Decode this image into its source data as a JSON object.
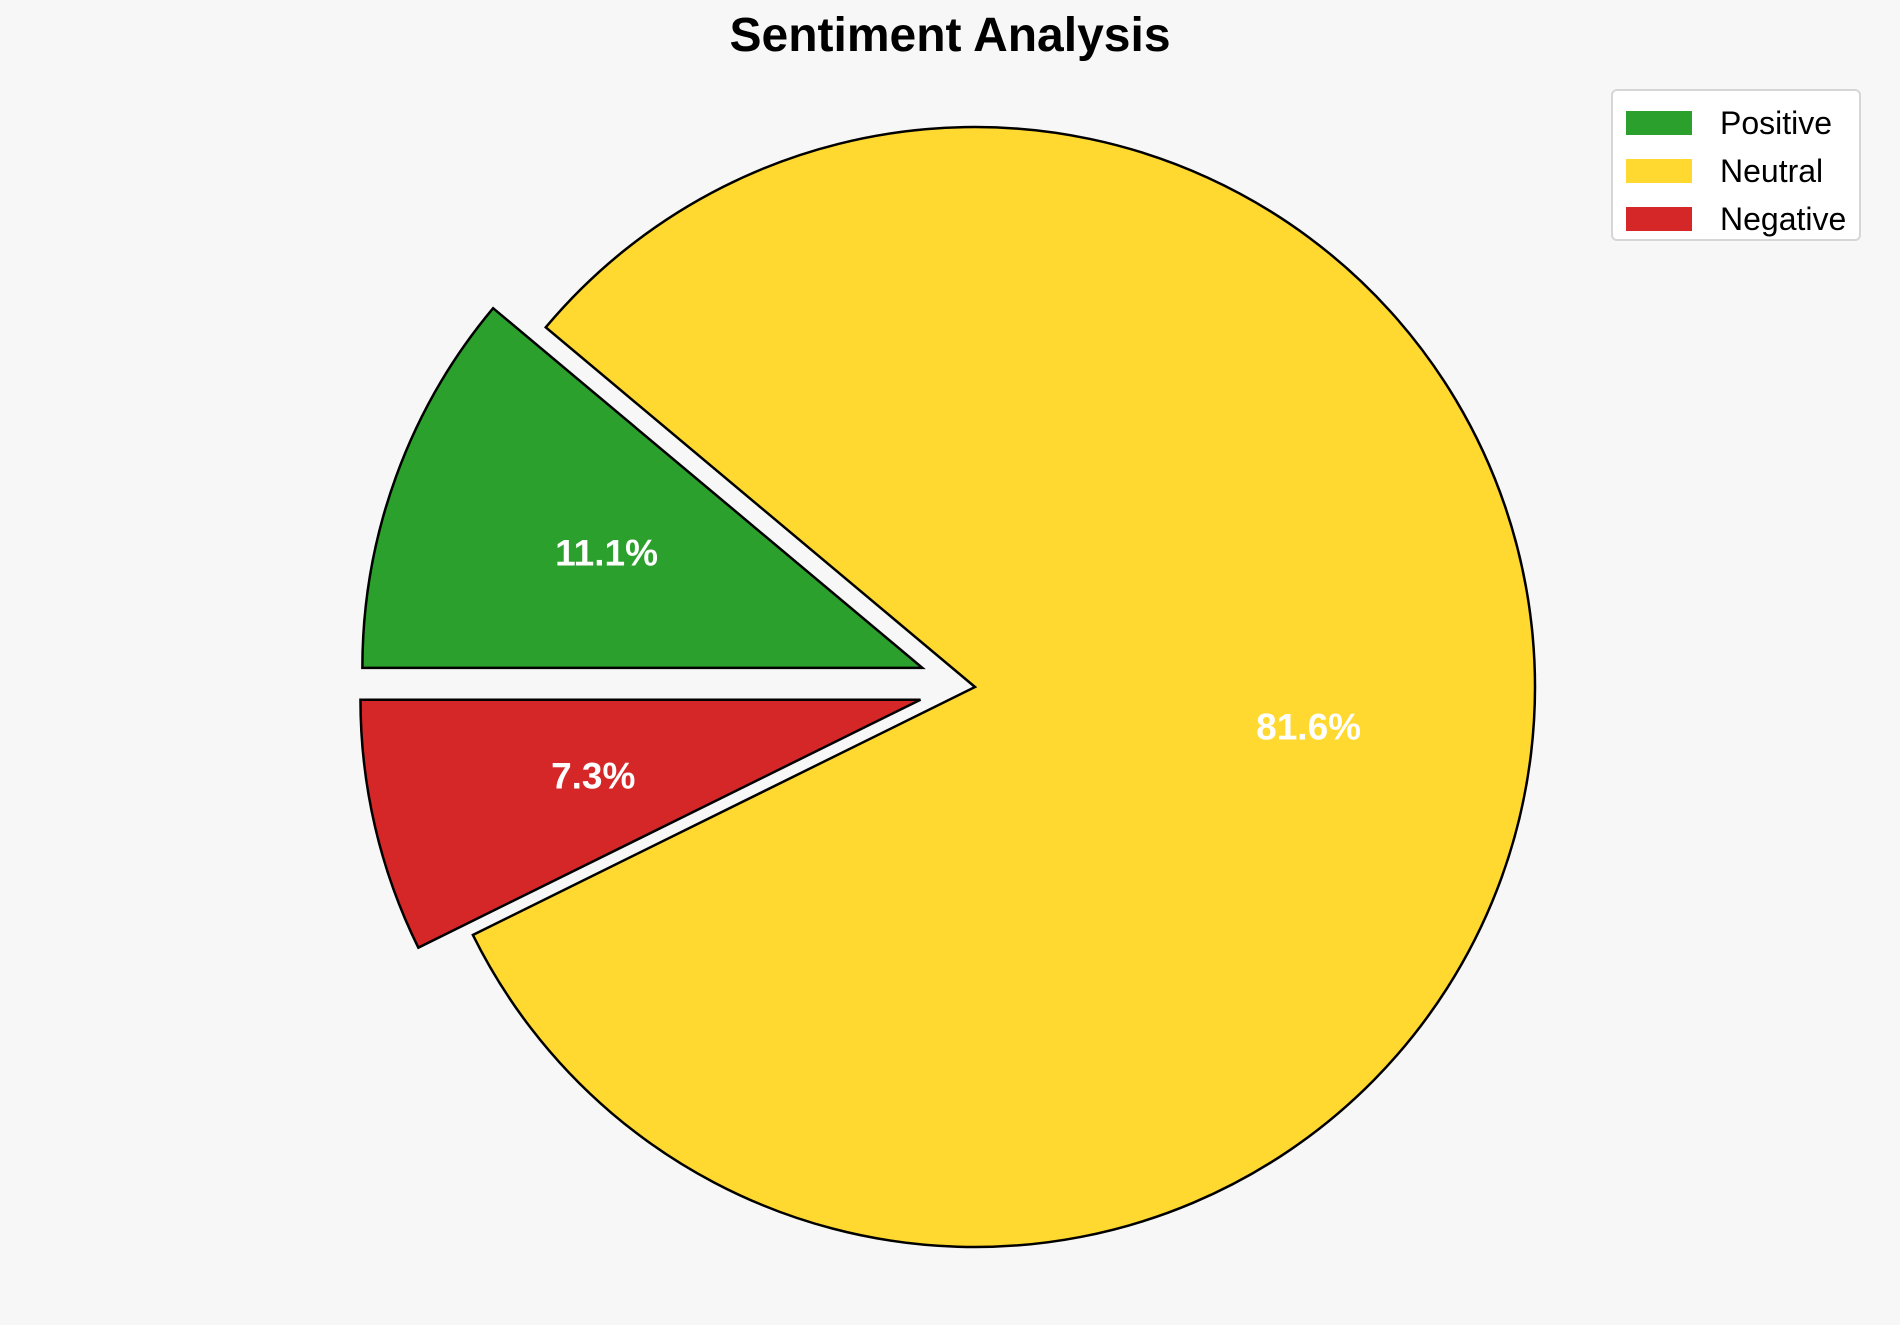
{
  "chart_data": {
    "type": "pie",
    "title": "Sentiment Analysis",
    "categories": [
      "Positive",
      "Neutral",
      "Negative"
    ],
    "values": [
      11.1,
      81.6,
      7.3
    ],
    "labels": [
      "11.1%",
      "81.6%",
      "7.3%"
    ],
    "colors": [
      "#2ca02c",
      "#ffd930",
      "#d62728"
    ],
    "exploded": [
      true,
      false,
      true
    ],
    "start_angle_deg": 180,
    "direction": "clockwise",
    "legend_position": "top-right"
  }
}
